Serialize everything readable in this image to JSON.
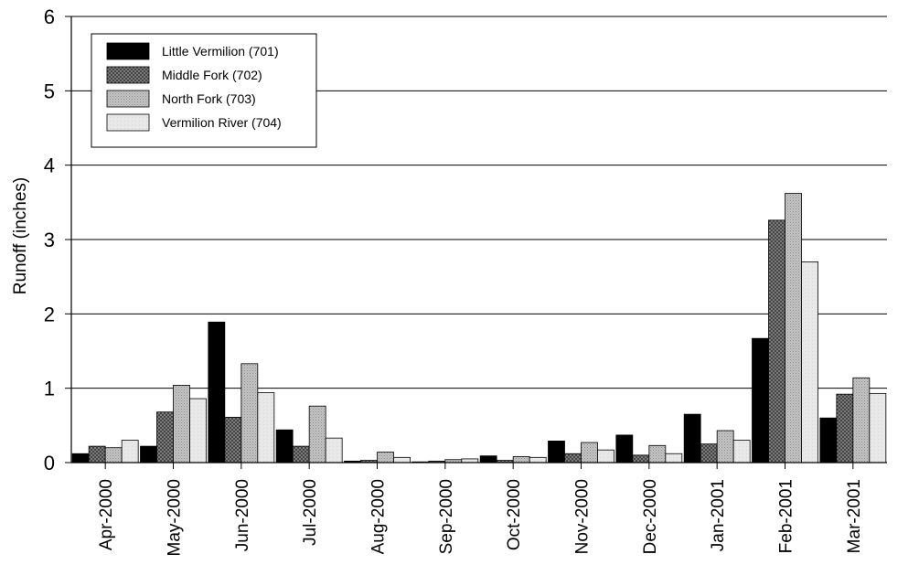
{
  "chart_data": {
    "type": "bar",
    "title": "",
    "xlabel": "",
    "ylabel": "Runoff (inches)",
    "ylim": [
      0,
      6
    ],
    "yticks": [
      0,
      1,
      2,
      3,
      4,
      5,
      6
    ],
    "grid": "horizontal",
    "legend_position": "top-left",
    "categories": [
      "Apr-2000",
      "May-2000",
      "Jun-2000",
      "Jul-2000",
      "Aug-2000",
      "Sep-2000",
      "Oct-2000",
      "Nov-2000",
      "Dec-2000",
      "Jan-2001",
      "Feb-2001",
      "Mar-2001"
    ],
    "series": [
      {
        "name": "Little Vermilion (701)",
        "fill": "solid-black",
        "color": "#000000",
        "values": [
          0.12,
          0.22,
          1.89,
          0.44,
          0.02,
          0.01,
          0.09,
          0.29,
          0.37,
          0.65,
          1.67,
          0.6
        ]
      },
      {
        "name": "Middle Fork (702)",
        "fill": "crosshatch-dark",
        "color": "#6e6e6e",
        "values": [
          0.22,
          0.68,
          0.61,
          0.22,
          0.03,
          0.02,
          0.03,
          0.12,
          0.1,
          0.25,
          3.26,
          0.92
        ]
      },
      {
        "name": "North Fork (703)",
        "fill": "dotted-gray",
        "color": "#b4b4b4",
        "values": [
          0.2,
          1.04,
          1.33,
          0.76,
          0.14,
          0.04,
          0.08,
          0.27,
          0.23,
          0.43,
          3.62,
          1.14
        ]
      },
      {
        "name": "Vermilion River (704)",
        "fill": "light-gray",
        "color": "#e6e6e6",
        "values": [
          0.3,
          0.86,
          0.94,
          0.33,
          0.07,
          0.05,
          0.07,
          0.17,
          0.12,
          0.3,
          2.7,
          0.93
        ]
      }
    ]
  }
}
